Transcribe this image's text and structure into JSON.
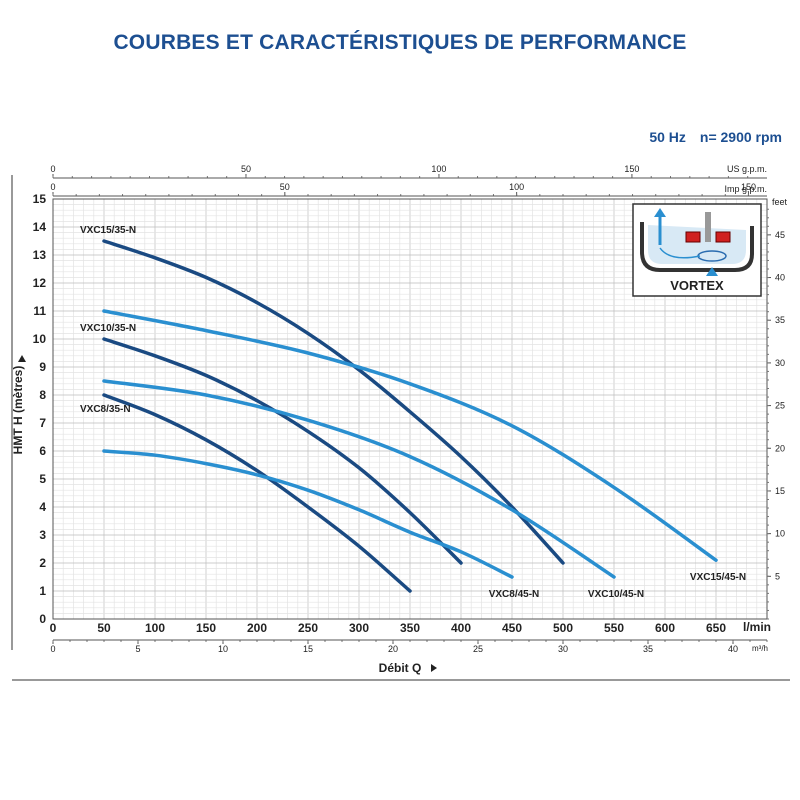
{
  "title": "COURBES ET CARACTÉRISTIQUES DE PERFORMANCE",
  "frequency": "50 Hz",
  "speed": "n= 2900 rpm",
  "colors": {
    "dark_series": "#1a4a82",
    "light_series": "#2a8fd0",
    "title": "#1d4f91",
    "grid": "#cfcfcf"
  },
  "axes": {
    "ylabel": "HMT H (mètres)",
    "xlabel": "Débit Q",
    "x_unit_lmin": "l/min",
    "x_unit_m3h": "m³/h",
    "x_unit_usgpm": "US g.p.m.",
    "x_unit_impgpm": "Imp g.p.m.",
    "y_unit_feet": "feet"
  },
  "ticks": {
    "lmin": [
      "0",
      "50",
      "100",
      "150",
      "200",
      "250",
      "300",
      "350",
      "400",
      "450",
      "500",
      "550",
      "600",
      "650"
    ],
    "m3h": [
      "0",
      "5",
      "10",
      "15",
      "20",
      "25",
      "30",
      "35",
      "40"
    ],
    "usgpm": [
      "0",
      "50",
      "100",
      "150"
    ],
    "impgpm": [
      "0",
      "50",
      "100",
      "150"
    ],
    "meters": [
      "0",
      "1",
      "2",
      "3",
      "4",
      "5",
      "6",
      "7",
      "8",
      "9",
      "10",
      "11",
      "12",
      "13",
      "14",
      "15"
    ],
    "feet": [
      "5",
      "10",
      "15",
      "20",
      "25",
      "30",
      "35",
      "40",
      "45"
    ]
  },
  "inset": {
    "label": "VORTEX"
  },
  "chart_data": {
    "type": "line",
    "title": "COURBES ET CARACTÉRISTIQUES DE PERFORMANCE",
    "xlabel": "Débit Q (l/min)",
    "ylabel": "HMT H (mètres)",
    "xlim": [
      0,
      700
    ],
    "ylim": [
      0,
      15
    ],
    "secondary_axes": {
      "m3h": [
        0,
        42
      ],
      "us_gpm": [
        0,
        185
      ],
      "imp_gpm": [
        0,
        154
      ],
      "feet": [
        0,
        49.2
      ]
    },
    "series": [
      {
        "name": "VXC15/35-N",
        "style": "dark",
        "label_side": "start",
        "x": [
          50,
          100,
          150,
          200,
          250,
          300,
          350,
          400,
          450,
          500
        ],
        "y": [
          13.5,
          12.9,
          12.2,
          11.3,
          10.2,
          8.9,
          7.4,
          5.8,
          4.0,
          2.0
        ]
      },
      {
        "name": "VXC10/35-N",
        "style": "dark",
        "label_side": "start",
        "x": [
          50,
          100,
          150,
          200,
          250,
          300,
          350,
          400
        ],
        "y": [
          10.0,
          9.4,
          8.7,
          7.8,
          6.7,
          5.4,
          3.8,
          2.0
        ]
      },
      {
        "name": "VXC8/35-N",
        "style": "dark",
        "label_side": "start",
        "x": [
          50,
          100,
          150,
          200,
          250,
          300,
          350
        ],
        "y": [
          8.0,
          7.3,
          6.4,
          5.3,
          4.0,
          2.6,
          1.0
        ]
      },
      {
        "name": "VXC15/45-N",
        "style": "light",
        "label_side": "end",
        "x": [
          50,
          150,
          250,
          350,
          450,
          550,
          650
        ],
        "y": [
          11.0,
          10.3,
          9.5,
          8.4,
          6.9,
          4.7,
          2.1
        ]
      },
      {
        "name": "VXC10/45-N",
        "style": "light",
        "label_side": "end",
        "x": [
          50,
          150,
          250,
          350,
          450,
          550
        ],
        "y": [
          8.5,
          8.0,
          7.1,
          5.8,
          3.9,
          1.5
        ]
      },
      {
        "name": "VXC8/45-N",
        "style": "light",
        "label_side": "end",
        "x": [
          50,
          100,
          150,
          200,
          250,
          300,
          350,
          400,
          450
        ],
        "y": [
          6.0,
          5.85,
          5.55,
          5.15,
          4.6,
          3.9,
          3.1,
          2.4,
          1.5
        ]
      }
    ]
  }
}
